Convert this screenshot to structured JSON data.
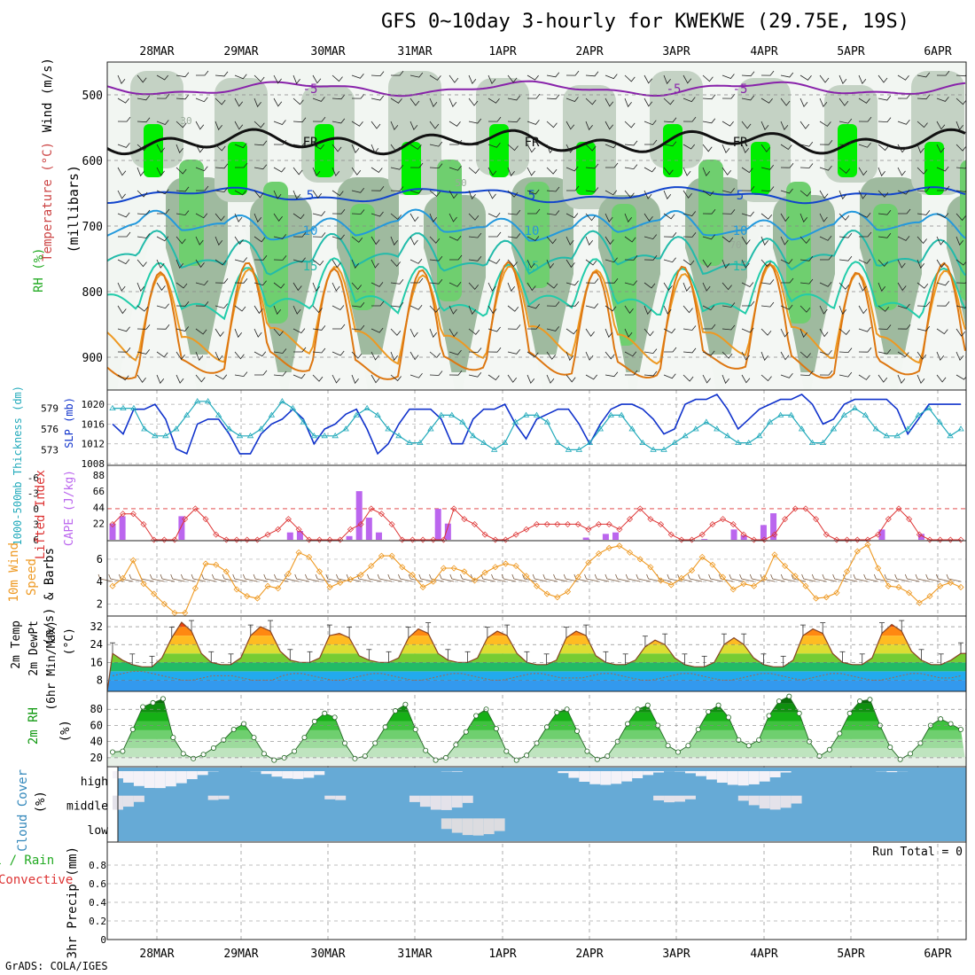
{
  "title": "GFS 0~10day 3-hourly for KWEKWE (29.75E, 19S)",
  "credit": "GrADS: COLA/IGES",
  "colors": {
    "rh_green": "#22cc22",
    "rh_bright": "#00ee00",
    "rh_grey": "#b8c8b8",
    "slp": "#1133cc",
    "thickness": "#22aabb",
    "lifted": "#dd3333",
    "cape": "#bb66ee",
    "wind10": "#ee9922",
    "temp_outline": "#884422",
    "rh2m": "#119911",
    "cloud": "#66aad6"
  },
  "chart_data": [
    {
      "type": "heatmap",
      "panel": "upper-air",
      "x": [
        "28MAR",
        "29MAR",
        "30MAR",
        "31MAR",
        "1APR",
        "2APR",
        "3APR",
        "4APR",
        "5APR",
        "6APR"
      ],
      "ylabel": "(millibars)",
      "yticks": [
        500,
        600,
        700,
        800,
        900
      ],
      "ylim": [
        450,
        950
      ],
      "legend": [
        "Wind (m/s)",
        "Temperature (°C)",
        "RH (%)"
      ],
      "contour_labels": {
        "temperature": [
          "-5",
          "FR",
          "5",
          "10",
          "15"
        ],
        "rh": [
          "30",
          "50",
          "70"
        ]
      },
      "freezing_level_label": "FR"
    },
    {
      "type": "line",
      "panel": "slp-thickness",
      "ylabel_left": "1000-500mb Thickness (dm)",
      "yticks_left": [
        573,
        576,
        579
      ],
      "ylabel_right": "SLP (mb)",
      "yticks_right": [
        1008,
        1012,
        1016,
        1020
      ],
      "series": [
        {
          "name": "SLP (mb)",
          "values": [
            1016,
            1014,
            1019,
            1019,
            1020,
            1017,
            1011,
            1010,
            1016,
            1017,
            1017,
            1014,
            1010,
            1010,
            1014,
            1016,
            1017,
            1019,
            1017,
            1012,
            1015,
            1016,
            1018,
            1019,
            1015,
            1010,
            1012,
            1016,
            1019,
            1019,
            1019,
            1017,
            1012,
            1012,
            1017,
            1019,
            1019,
            1020,
            1016,
            1013,
            1017,
            1018,
            1019,
            1019,
            1016,
            1012,
            1016,
            1019,
            1020,
            1020,
            1019,
            1017,
            1014,
            1015,
            1020,
            1021,
            1021,
            1022,
            1019,
            1015,
            1017,
            1019,
            1020,
            1021,
            1021,
            1022,
            1020,
            1016,
            1017,
            1020,
            1021,
            1021,
            1021,
            1021,
            1019,
            1014,
            1017,
            1020,
            1020,
            1020,
            1020
          ]
        },
        {
          "name": "1000-500mb Thickness (dm)",
          "values": [
            579,
            579,
            579,
            576,
            575,
            575,
            576,
            578,
            580,
            580,
            578,
            576,
            575,
            575,
            576,
            578,
            580,
            579,
            577,
            575,
            575,
            575,
            576,
            578,
            579,
            578,
            576,
            575,
            574,
            574,
            576,
            578,
            578,
            577,
            575,
            574,
            573,
            574,
            577,
            578,
            578,
            577,
            574,
            573,
            573,
            574,
            576,
            578,
            578,
            576,
            574,
            573,
            573,
            574,
            575,
            576,
            577,
            576,
            575,
            574,
            574,
            575,
            577,
            578,
            578,
            576,
            574,
            574,
            576,
            578,
            579,
            578,
            576,
            575,
            575,
            576,
            578,
            579,
            577,
            575,
            576
          ]
        }
      ]
    },
    {
      "type": "bar",
      "panel": "lifted-cape",
      "ylabel_left": "Lifted Index",
      "yticks_left": [
        "-6",
        "-3",
        "0",
        "3",
        "6"
      ],
      "ylabel_right": "CAPE (J/kg)",
      "yticks_right": [
        22,
        44,
        66,
        88
      ],
      "series": [
        {
          "name": "CAPE (J/kg)",
          "values": [
            22,
            32,
            0,
            0,
            0,
            0,
            0,
            32,
            0,
            0,
            0,
            0,
            0,
            0,
            0,
            0,
            0,
            0,
            10,
            12,
            0,
            0,
            0,
            0,
            5,
            66,
            30,
            10,
            0,
            0,
            0,
            0,
            0,
            42,
            22,
            0,
            0,
            0,
            0,
            0,
            0,
            0,
            0,
            0,
            0,
            0,
            0,
            0,
            3,
            0,
            8,
            10,
            0,
            0,
            0,
            0,
            0,
            0,
            0,
            0,
            1,
            0,
            0,
            14,
            6,
            0,
            20,
            36,
            0,
            0,
            0,
            0,
            0,
            0,
            0,
            0,
            0,
            0,
            14,
            0,
            0,
            0,
            8,
            0,
            0,
            0,
            0
          ]
        },
        {
          "name": "Lifted Index",
          "values": [
            3,
            1,
            1,
            3,
            6,
            6,
            6,
            2,
            0,
            2,
            5,
            6,
            6,
            6,
            6,
            5,
            4,
            2,
            4,
            6,
            6,
            6,
            6,
            4,
            3,
            0,
            1,
            3,
            6,
            6,
            6,
            6,
            6,
            0,
            2,
            3,
            5,
            6,
            6,
            5,
            4,
            3,
            3,
            3,
            3,
            3,
            4,
            3,
            3,
            4,
            2,
            0,
            2,
            3,
            5,
            6,
            6,
            5,
            3,
            2,
            3,
            5,
            6,
            6,
            5,
            2,
            0,
            0,
            2,
            5,
            6,
            6,
            6,
            6,
            5,
            2,
            0,
            2,
            5,
            6,
            6,
            6,
            6
          ]
        }
      ]
    },
    {
      "type": "line",
      "panel": "wind10m",
      "ylabel": "10m Wind Speed (m/s) & Barbs",
      "yticks": [
        2,
        4,
        6
      ],
      "ylim": [
        1,
        7.5
      ],
      "series": [
        {
          "name": "10m Wind Speed",
          "values": [
            3.6,
            4.3,
            5.9,
            3.8,
            2.9,
            2.0,
            1.2,
            1.2,
            3.4,
            5.6,
            5.5,
            4.9,
            3.3,
            2.7,
            2.5,
            3.6,
            3.4,
            4.7,
            6.6,
            6.2,
            4.9,
            3.5,
            3.9,
            4.2,
            4.6,
            5.4,
            6.3,
            6.3,
            5.3,
            4.6,
            3.5,
            4.0,
            5.2,
            5.2,
            4.9,
            4.1,
            4.8,
            5.3,
            5.6,
            5.4,
            4.5,
            3.6,
            2.9,
            2.6,
            3.1,
            4.4,
            5.7,
            6.5,
            7.0,
            7.2,
            6.6,
            6.0,
            5.3,
            4.1,
            3.7,
            4.3,
            5.0,
            6.2,
            5.5,
            4.4,
            3.3,
            3.8,
            3.6,
            4.3,
            6.4,
            5.4,
            4.5,
            3.6,
            2.5,
            2.6,
            3.0,
            4.9,
            6.7,
            7.3,
            5.2,
            3.6,
            3.5,
            3.0,
            2.1,
            2.7,
            3.6,
            3.9,
            3.5
          ]
        }
      ]
    },
    {
      "type": "area",
      "panel": "temp2m",
      "ylabel": "2m Temp 2m DewPt (6hr Min/Max) (°C)",
      "yticks": [
        8,
        16,
        24,
        32
      ],
      "series": [
        {
          "name": "2m Temp",
          "values": [
            20,
            17,
            15,
            14,
            14,
            18,
            27,
            34,
            30,
            20,
            16,
            15,
            15,
            18,
            28,
            32,
            30,
            21,
            17,
            16,
            16,
            18,
            28,
            29,
            27,
            19,
            17,
            16,
            16,
            18,
            27,
            31,
            29,
            20,
            17,
            16,
            16,
            18,
            27,
            30,
            28,
            20,
            16,
            15,
            15,
            17,
            27,
            30,
            28,
            19,
            16,
            15,
            15,
            17,
            23,
            26,
            24,
            18,
            15,
            14,
            14,
            16,
            24,
            27,
            24,
            18,
            15,
            14,
            14,
            17,
            28,
            31,
            29,
            20,
            16,
            15,
            15,
            18,
            29,
            33,
            30,
            21,
            17,
            15,
            15,
            17,
            20
          ]
        },
        {
          "name": "2m DewPt",
          "values": [
            10,
            11,
            12,
            12,
            11,
            10,
            9,
            8,
            8,
            9,
            10,
            10,
            10,
            9,
            8,
            8,
            8,
            10,
            11,
            11,
            10,
            9,
            8,
            8,
            9,
            10,
            11,
            11,
            10,
            9,
            8,
            8,
            9,
            10,
            11,
            11,
            10,
            9,
            8,
            8,
            9,
            10,
            11,
            11,
            10,
            9,
            9,
            9,
            10,
            11,
            11,
            10,
            9,
            8,
            8,
            9,
            10,
            11,
            11,
            10,
            9,
            8,
            8,
            9,
            10,
            11,
            11,
            10,
            9,
            8,
            9,
            10,
            11,
            11,
            10,
            9,
            8,
            8,
            9,
            10,
            11,
            11,
            10,
            9,
            9,
            10
          ]
        }
      ]
    },
    {
      "type": "area",
      "panel": "rh2m",
      "ylabel": "2m RH (%)",
      "yticks": [
        20,
        40,
        60,
        80
      ],
      "ylim": [
        10,
        100
      ],
      "series": [
        {
          "name": "2m RH",
          "values": [
            27,
            28,
            55,
            83,
            88,
            93,
            45,
            25,
            19,
            24,
            32,
            42,
            55,
            62,
            45,
            25,
            17,
            20,
            28,
            45,
            65,
            75,
            70,
            38,
            19,
            22,
            38,
            58,
            78,
            86,
            55,
            29,
            17,
            20,
            36,
            52,
            72,
            80,
            56,
            28,
            17,
            23,
            38,
            58,
            76,
            80,
            53,
            28,
            18,
            22,
            40,
            62,
            80,
            85,
            60,
            35,
            27,
            35,
            55,
            77,
            85,
            70,
            42,
            35,
            42,
            72,
            90,
            96,
            75,
            40,
            22,
            30,
            50,
            75,
            90,
            92,
            60,
            33,
            18,
            25,
            38,
            60,
            68,
            62,
            55
          ]
        }
      ]
    },
    {
      "type": "heatmap",
      "panel": "cloud-cover",
      "ylabel": "Cloud Cover (%)",
      "categories": [
        "high",
        "middle",
        "low"
      ]
    },
    {
      "type": "bar",
      "panel": "precip",
      "ylabel": "3hr Precip (mm)",
      "legend": [
        "Total / Rain",
        "Convective"
      ],
      "yticks": [
        0,
        0.2,
        0.4,
        0.6,
        0.8
      ],
      "ylim": [
        0,
        1
      ],
      "annotation": "Run Total = 0",
      "values": []
    }
  ],
  "labels": {
    "wind": "Wind (m/s)",
    "temperature": "Temperature (°C)",
    "rh": "RH (%)",
    "millibars": "(millibars)",
    "thickness": "1000-500mb Thickness (dm)",
    "slp": "SLP (mb)",
    "lifted": "Lifted Index",
    "cape": "CAPE (J/kg)",
    "wind10_a": "10m Wind",
    "wind10_b": "Speed",
    "wind10_c": "(m/s) & Barbs",
    "temp_a": "2m Temp",
    "temp_b": "2m DewPt",
    "temp_c": "(6hr Min/Max)",
    "temp_d": "(°C)",
    "rh2m_a": "2m RH",
    "rh2m_b": "(%)",
    "cloud_a": "Cloud Cover",
    "cloud_b": "(%)",
    "precip_a": "Total / Rain",
    "precip_b": "Convective",
    "precip_c": "3hr Precip (mm)",
    "run_total": "Run Total = 0"
  }
}
